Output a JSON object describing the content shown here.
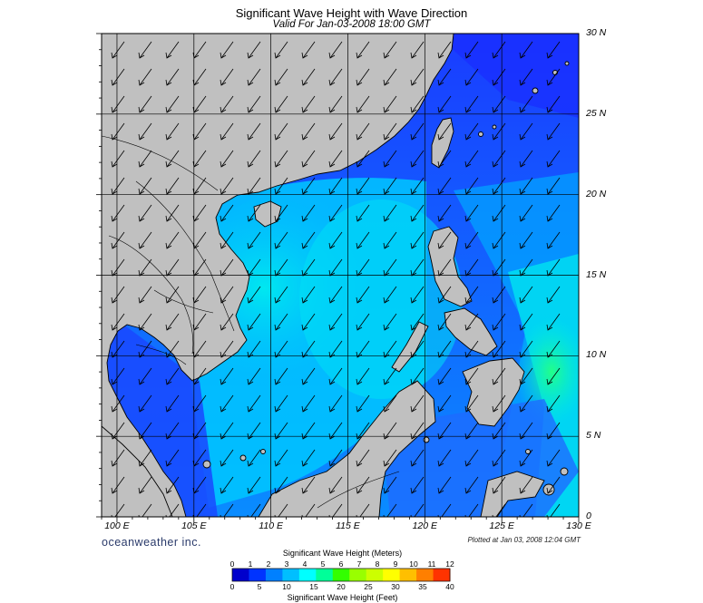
{
  "title": "Significant Wave Height with Wave Direction",
  "subtitle": "Valid For Jan-03-2008 18:00 GMT",
  "map": {
    "lon_range": [
      99,
      130
    ],
    "lat_range": [
      0,
      30
    ],
    "lat_labels": [
      "30 N",
      "25 N",
      "20 N",
      "15 N",
      "10 N",
      "5 N",
      "0"
    ],
    "lat_values": [
      30,
      25,
      20,
      15,
      10,
      5,
      0
    ],
    "lon_labels": [
      "100 E",
      "105 E",
      "110 E",
      "115 E",
      "120 E",
      "125 E",
      "130 E"
    ],
    "lon_values": [
      100,
      105,
      110,
      115,
      120,
      125,
      130
    ],
    "grid": true,
    "arrow_direction": "toward south-west",
    "land_color": "#c0c0c0",
    "coast_color": "#000000"
  },
  "brand": "oceanweather inc.",
  "plotted": "Plotted at Jan 03, 2008 12:04 GMT",
  "colorbar": {
    "title_meters": "Significant Wave Height (Meters)",
    "title_feet": "Significant Wave Height (Feet)",
    "meters_ticks": [
      "0",
      "1",
      "2",
      "3",
      "4",
      "5",
      "6",
      "7",
      "8",
      "9",
      "10",
      "11",
      "12"
    ],
    "feet_ticks": [
      "0",
      "5",
      "10",
      "15",
      "20",
      "25",
      "30",
      "35",
      "40"
    ],
    "colors": [
      "#0000cc",
      "#0033ff",
      "#0080ff",
      "#00bfff",
      "#00ffff",
      "#00ff99",
      "#33ff00",
      "#99ff00",
      "#ccff00",
      "#ffff00",
      "#ffbf00",
      "#ff7f00",
      "#ff3300"
    ]
  }
}
